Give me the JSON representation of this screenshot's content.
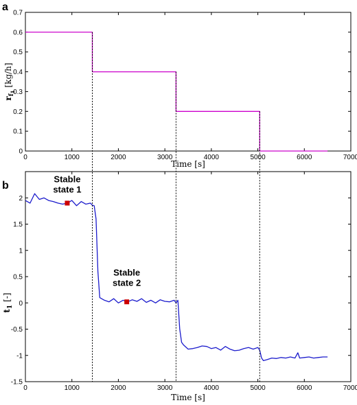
{
  "chart_data": [
    {
      "panel_label": "a",
      "type": "line",
      "xlabel": "Time [s]",
      "ylabel": "r_f1 [kg/h]",
      "ylabel_main": "r",
      "ylabel_sub": "f",
      "ylabel_subsub": "1",
      "ylabel_unit": "[kg/h]",
      "xlim": [
        0,
        7000
      ],
      "ylim": [
        0,
        0.7
      ],
      "xticks": [
        0,
        1000,
        2000,
        3000,
        4000,
        5000,
        6000,
        7000
      ],
      "yticks": [
        0,
        0.1,
        0.2,
        0.3,
        0.4,
        0.5,
        0.6,
        0.7
      ],
      "xtick_labels": [
        "0",
        "1000",
        "2000",
        "3000",
        "4000",
        "5000",
        "6000",
        "7000"
      ],
      "ytick_labels": [
        "0",
        "0.1",
        "0.2",
        "0.3",
        "0.4",
        "0.5",
        "0.6",
        "0.7"
      ],
      "grid": false,
      "series": [
        {
          "color": "#cc00cc",
          "step": true,
          "x": [
            0,
            1440,
            1440,
            3240,
            3240,
            5040,
            5040,
            6500
          ],
          "y": [
            0.6,
            0.6,
            0.4,
            0.4,
            0.2,
            0.2,
            0,
            0
          ]
        }
      ]
    },
    {
      "panel_label": "b",
      "type": "line",
      "xlabel": "Time [s]",
      "ylabel": "t_1 [-]",
      "ylabel_main": "t",
      "ylabel_sub": "1",
      "ylabel_unit": "[-]",
      "xlim": [
        0,
        7000
      ],
      "ylim": [
        -1.5,
        2.5
      ],
      "xticks": [
        0,
        1000,
        2000,
        3000,
        4000,
        5000,
        6000,
        7000
      ],
      "yticks": [
        -1.5,
        -1,
        -0.5,
        0,
        0.5,
        1,
        1.5,
        2
      ],
      "xtick_labels": [
        "0",
        "1000",
        "2000",
        "3000",
        "4000",
        "5000",
        "6000",
        "7000"
      ],
      "ytick_labels": [
        "-1.5",
        "-1",
        "-0.5",
        "0",
        "0.5",
        "1",
        "1.5",
        "2"
      ],
      "grid": false,
      "series": [
        {
          "color": "#1a1acc",
          "x": [
            0,
            100,
            200,
            300,
            400,
            500,
            600,
            700,
            800,
            900,
            1000,
            1100,
            1200,
            1300,
            1400,
            1440,
            1480,
            1520,
            1560,
            1600,
            1700,
            1800,
            1900,
            2000,
            2100,
            2200,
            2300,
            2400,
            2500,
            2600,
            2700,
            2800,
            2900,
            3000,
            3100,
            3200,
            3240,
            3280,
            3320,
            3360,
            3400,
            3500,
            3600,
            3700,
            3800,
            3900,
            4000,
            4100,
            4200,
            4300,
            4400,
            4500,
            4600,
            4700,
            4800,
            4900,
            5000,
            5040,
            5080,
            5120,
            5200,
            5300,
            5400,
            5500,
            5600,
            5700,
            5800,
            5860,
            5900,
            6000,
            6100,
            6200,
            6300,
            6400,
            6500
          ],
          "y": [
            1.95,
            1.9,
            2.08,
            1.97,
            2.0,
            1.95,
            1.93,
            1.9,
            1.88,
            1.9,
            1.95,
            1.85,
            1.93,
            1.88,
            1.9,
            1.86,
            1.85,
            1.6,
            0.6,
            0.1,
            0.05,
            0.02,
            0.08,
            0.0,
            0.05,
            0.02,
            0.06,
            0.03,
            0.08,
            0.01,
            0.05,
            0.0,
            0.06,
            0.03,
            0.02,
            0.05,
            0.0,
            0.05,
            -0.5,
            -0.75,
            -0.8,
            -0.88,
            -0.87,
            -0.85,
            -0.82,
            -0.83,
            -0.87,
            -0.85,
            -0.9,
            -0.83,
            -0.88,
            -0.91,
            -0.9,
            -0.87,
            -0.85,
            -0.88,
            -0.85,
            -0.9,
            -1.05,
            -1.1,
            -1.08,
            -1.05,
            -1.06,
            -1.04,
            -1.05,
            -1.03,
            -1.05,
            -0.95,
            -1.05,
            -1.04,
            -1.03,
            -1.05,
            -1.04,
            -1.03,
            -1.03
          ]
        }
      ],
      "markers": [
        {
          "x": 900,
          "y": 1.9,
          "color": "#cc0000"
        },
        {
          "x": 2180,
          "y": 0.02,
          "color": "#cc0000"
        }
      ],
      "annotations": [
        {
          "line1": "Stable",
          "line2": "state 1",
          "x": 900,
          "y": 2.3
        },
        {
          "line1": "Stable",
          "line2": "state 2",
          "x": 2180,
          "y": 0.52
        }
      ]
    }
  ],
  "transitions": [
    1440,
    3240,
    5040
  ]
}
